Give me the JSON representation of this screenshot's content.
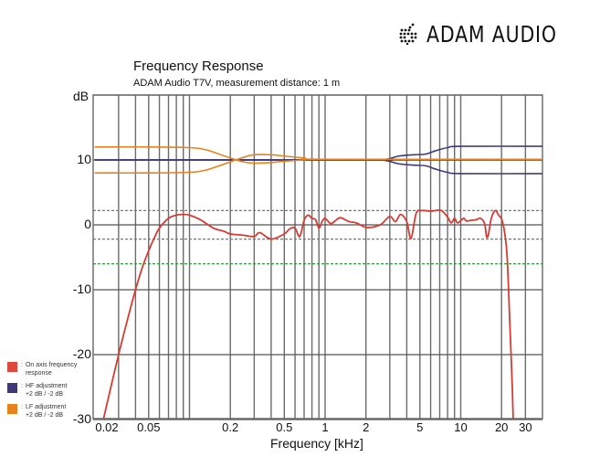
{
  "brand": {
    "name": "ADAM AUDIO",
    "logo_icon": "dotted-audio-logo-icon"
  },
  "header": {
    "title": "Frequency Response",
    "subtitle": "ADAM Audio T7V, measurement distance: 1 m"
  },
  "legend": [
    {
      "label_line1": "On axis frequency",
      "label_line2": "response",
      "color": "#e0473d"
    },
    {
      "label_line1": "HF adjustment",
      "label_line2": "+2 dB / -2 dB",
      "color": "#3e3a78"
    },
    {
      "label_line1": "LF adjustment",
      "label_line2": "+2 dB / -2 dB",
      "color": "#e8821e"
    }
  ],
  "chart_data": {
    "type": "line",
    "title": "Frequency Response",
    "subtitle": "ADAM Audio T7V, measurement distance: 1 m",
    "xlabel": "Frequency [kHz]",
    "ylabel": "dB",
    "x_scale": "log",
    "xlim": [
      0.02,
      40
    ],
    "ylim": [
      -30,
      20
    ],
    "x_tick_labels": [
      "0.02",
      "0.05",
      "0.2",
      "0.5",
      "1",
      "2",
      "5",
      "10",
      "20",
      "30"
    ],
    "x_tick_values": [
      0.02,
      0.05,
      0.2,
      0.5,
      1,
      2,
      5,
      10,
      20,
      30
    ],
    "x_grid": [
      0.03,
      0.04,
      0.05,
      0.06,
      0.07,
      0.08,
      0.09,
      0.1,
      0.2,
      0.3,
      0.4,
      0.5,
      0.6,
      0.7,
      0.8,
      0.9,
      1,
      2,
      3,
      4,
      5,
      6,
      7,
      8,
      9,
      10,
      20,
      30
    ],
    "y_tick_labels": [
      "10",
      "0",
      "-10",
      "-20",
      "-30"
    ],
    "y_tick_values": [
      10,
      0,
      -10,
      -20,
      -30
    ],
    "grid": true,
    "reference_lines": [
      {
        "y": 2.2,
        "style": "dashed",
        "color": "#777777"
      },
      {
        "y": -2.2,
        "style": "dashed",
        "color": "#777777"
      },
      {
        "y": -6,
        "style": "dashed",
        "color": "#2a9a3a"
      }
    ],
    "legend_position": "left-outside-bottom",
    "series": [
      {
        "name": "On axis frequency response",
        "color": "#d63c32",
        "x": [
          0.022,
          0.025,
          0.03,
          0.035,
          0.04,
          0.045,
          0.05,
          0.055,
          0.06,
          0.07,
          0.08,
          0.09,
          0.1,
          0.12,
          0.15,
          0.18,
          0.2,
          0.25,
          0.3,
          0.33,
          0.4,
          0.5,
          0.55,
          0.6,
          0.65,
          0.7,
          0.75,
          0.8,
          0.85,
          0.9,
          0.95,
          1.0,
          1.1,
          1.2,
          1.3,
          1.5,
          1.7,
          2.0,
          2.3,
          2.6,
          3.0,
          3.3,
          3.6,
          4.0,
          4.3,
          4.7,
          5.2,
          6.0,
          6.5,
          7.2,
          8.0,
          8.5,
          9.0,
          9.5,
          10.5,
          11,
          12,
          13,
          14,
          15,
          15.5,
          16,
          16.8,
          18,
          19,
          20,
          21,
          22,
          23,
          24,
          24.5
        ],
        "y": [
          -32,
          -27,
          -20,
          -14.5,
          -10,
          -6.5,
          -4,
          -2,
          -0.5,
          1,
          1.5,
          1.6,
          1.5,
          0.8,
          -0.5,
          -1,
          -1.4,
          -1.6,
          -1.8,
          -1.2,
          -2.2,
          -1.4,
          -0.6,
          -0.5,
          -1.8,
          0.7,
          1.5,
          1.0,
          0.8,
          -0.5,
          0.5,
          1.0,
          0.2,
          0.7,
          1.1,
          0.5,
          0.3,
          -0.4,
          -0.3,
          0.1,
          1.3,
          0.5,
          1.6,
          0.5,
          -2.1,
          1.8,
          2.2,
          2.1,
          2.2,
          2.2,
          1.2,
          0.3,
          1.0,
          0.3,
          1.0,
          0.6,
          0.7,
          0.8,
          1.0,
          0.2,
          -1.8,
          -1.5,
          1.0,
          2.2,
          1.5,
          0.9,
          -1,
          -5,
          -15,
          -25,
          -32
        ]
      },
      {
        "name": "HF adjustment +2 dB",
        "color": "#3e3a78",
        "x": [
          0.02,
          2.0,
          2.8,
          3.5,
          4.5,
          5.5,
          6.5,
          8,
          10,
          40
        ],
        "y": [
          10,
          10,
          10.1,
          10.6,
          10.8,
          10.9,
          11.4,
          11.9,
          12.1,
          12.1
        ]
      },
      {
        "name": "HF adjustment -2 dB",
        "color": "#3e3a78",
        "x": [
          0.02,
          2.0,
          2.8,
          3.5,
          4.5,
          5.5,
          6.5,
          8,
          10,
          40
        ],
        "y": [
          10,
          10,
          9.9,
          9.4,
          9.2,
          9.1,
          8.6,
          8.1,
          7.9,
          7.9
        ]
      },
      {
        "name": "HF flat (0 dB)",
        "color": "#3e3a78",
        "x": [
          0.02,
          40
        ],
        "y": [
          10,
          10
        ]
      },
      {
        "name": "LF adjustment +2 dB",
        "color": "#e8821e",
        "x": [
          0.02,
          0.05,
          0.1,
          0.13,
          0.16,
          0.2,
          0.25,
          0.3,
          0.4,
          0.5,
          0.7,
          1.0,
          40
        ],
        "y": [
          12,
          12,
          11.9,
          11.6,
          11,
          10.3,
          9.7,
          9.5,
          9.6,
          9.8,
          10,
          10.1,
          10.1
        ]
      },
      {
        "name": "LF adjustment -2 dB",
        "color": "#e8821e",
        "x": [
          0.02,
          0.05,
          0.1,
          0.13,
          0.16,
          0.2,
          0.25,
          0.3,
          0.4,
          0.5,
          0.7,
          1.0,
          40
        ],
        "y": [
          8,
          8,
          8.1,
          8.4,
          9,
          9.7,
          10.4,
          10.8,
          10.8,
          10.6,
          10.3,
          10.1,
          10.1
        ]
      }
    ]
  }
}
